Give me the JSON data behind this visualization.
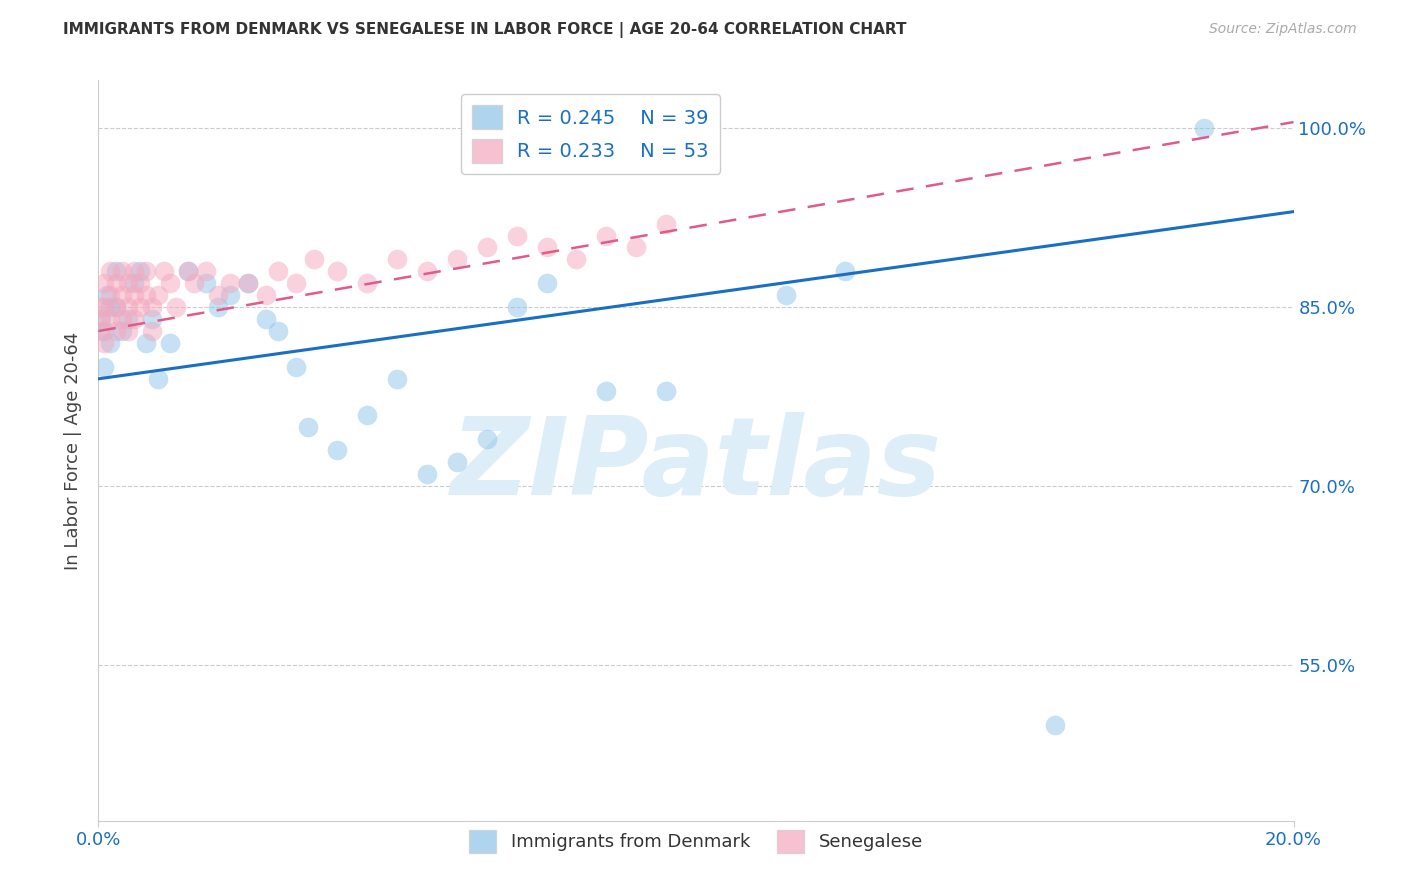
{
  "title": "IMMIGRANTS FROM DENMARK VS SENEGALESE IN LABOR FORCE | AGE 20-64 CORRELATION CHART",
  "source": "Source: ZipAtlas.com",
  "ylabel": "In Labor Force | Age 20-64",
  "yticks": [
    0.55,
    0.7,
    0.85,
    1.0
  ],
  "ytick_labels": [
    "55.0%",
    "70.0%",
    "85.0%",
    "100.0%"
  ],
  "xlim": [
    0.0,
    0.2
  ],
  "ylim": [
    0.42,
    1.04
  ],
  "legend1_r": "0.245",
  "legend1_n": "39",
  "legend2_r": "0.233",
  "legend2_n": "53",
  "blue_scatter": "#8ec4e8",
  "pink_scatter": "#f4a7be",
  "trend_blue": "#1a6fc4",
  "trend_pink": "#e05a8a",
  "axis_color": "#1a6fc4",
  "grid_color": "#cccccc",
  "background": "#ffffff",
  "watermark": "ZIPatlas",
  "watermark_color": "#ddeef8",
  "title_color": "#333333",
  "source_color": "#aaaaaa",
  "denmark_x": [
    0.0005,
    0.001,
    0.001,
    0.0015,
    0.002,
    0.002,
    0.003,
    0.003,
    0.004,
    0.005,
    0.006,
    0.007,
    0.008,
    0.009,
    0.01,
    0.012,
    0.015,
    0.018,
    0.02,
    0.022,
    0.025,
    0.028,
    0.03,
    0.033,
    0.035,
    0.04,
    0.045,
    0.05,
    0.055,
    0.06,
    0.065,
    0.07,
    0.075,
    0.085,
    0.095,
    0.115,
    0.125,
    0.16,
    0.185
  ],
  "denmark_y": [
    0.84,
    0.83,
    0.8,
    0.86,
    0.85,
    0.82,
    0.88,
    0.85,
    0.83,
    0.84,
    0.87,
    0.88,
    0.82,
    0.84,
    0.79,
    0.82,
    0.88,
    0.87,
    0.85,
    0.86,
    0.87,
    0.84,
    0.83,
    0.8,
    0.75,
    0.73,
    0.76,
    0.79,
    0.71,
    0.72,
    0.74,
    0.85,
    0.87,
    0.78,
    0.78,
    0.86,
    0.88,
    0.5,
    1.0
  ],
  "senegal_x": [
    0.0002,
    0.0003,
    0.0005,
    0.001,
    0.001,
    0.001,
    0.002,
    0.002,
    0.002,
    0.003,
    0.003,
    0.003,
    0.004,
    0.004,
    0.004,
    0.005,
    0.005,
    0.005,
    0.006,
    0.006,
    0.006,
    0.007,
    0.007,
    0.008,
    0.008,
    0.009,
    0.009,
    0.01,
    0.011,
    0.012,
    0.013,
    0.015,
    0.016,
    0.018,
    0.02,
    0.022,
    0.025,
    0.028,
    0.03,
    0.033,
    0.036,
    0.04,
    0.045,
    0.05,
    0.055,
    0.06,
    0.065,
    0.07,
    0.075,
    0.08,
    0.085,
    0.09,
    0.095
  ],
  "senegal_y": [
    0.84,
    0.85,
    0.83,
    0.87,
    0.85,
    0.82,
    0.86,
    0.84,
    0.88,
    0.85,
    0.87,
    0.83,
    0.86,
    0.84,
    0.88,
    0.87,
    0.85,
    0.83,
    0.86,
    0.84,
    0.88,
    0.85,
    0.87,
    0.86,
    0.88,
    0.85,
    0.83,
    0.86,
    0.88,
    0.87,
    0.85,
    0.88,
    0.87,
    0.88,
    0.86,
    0.87,
    0.87,
    0.86,
    0.88,
    0.87,
    0.89,
    0.88,
    0.87,
    0.89,
    0.88,
    0.89,
    0.9,
    0.91,
    0.9,
    0.89,
    0.91,
    0.9,
    0.92
  ],
  "trend_blue_x0": 0.0,
  "trend_blue_x1": 0.2,
  "trend_blue_y0": 0.79,
  "trend_blue_y1": 0.93,
  "trend_pink_x0": 0.0,
  "trend_pink_x1": 0.2,
  "trend_pink_y0": 0.83,
  "trend_pink_y1": 1.005
}
